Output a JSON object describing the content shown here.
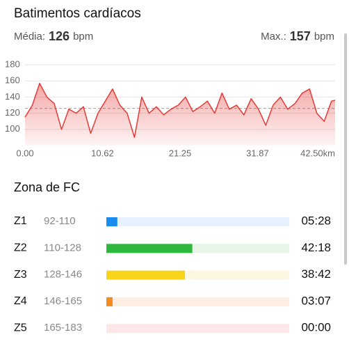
{
  "header": {
    "title": "Batimentos cardíacos",
    "avg_label": "Média:",
    "avg_value": 126,
    "avg_unit": "bpm",
    "max_label": "Max.:",
    "max_value": 157,
    "max_unit": "bpm"
  },
  "chart_data": {
    "type": "area",
    "color": "#e53935",
    "x": [
      0,
      1,
      2,
      3,
      4,
      5,
      6,
      7,
      8,
      9,
      10,
      11,
      12,
      13,
      14,
      15,
      16,
      17,
      18,
      19,
      20,
      21,
      22,
      23,
      24,
      25,
      26,
      27,
      28,
      29,
      30,
      31,
      32,
      33,
      34,
      35,
      36,
      37,
      38,
      39,
      40,
      41,
      42,
      42.5
    ],
    "values": [
      115,
      130,
      157,
      140,
      132,
      100,
      125,
      120,
      128,
      95,
      120,
      135,
      150,
      130,
      120,
      90,
      140,
      120,
      128,
      118,
      125,
      130,
      140,
      122,
      128,
      135,
      120,
      145,
      125,
      130,
      118,
      138,
      125,
      105,
      130,
      140,
      125,
      132,
      145,
      150,
      120,
      110,
      135,
      136
    ],
    "xlim": [
      0,
      42.5
    ],
    "ylim": [
      80,
      180
    ],
    "yticks": [
      100,
      120,
      140,
      160,
      180
    ],
    "xticks": [
      {
        "value": 0,
        "label": "0.00"
      },
      10.62,
      21.25,
      31.87,
      {
        "value": 42.5,
        "label": "42.50km"
      }
    ],
    "grid": true
  },
  "zones": {
    "title": "Zona de FC",
    "rows": [
      {
        "name": "Z1",
        "range": "92-110",
        "time": "05:28",
        "share": 6,
        "color": "#1a8cf0",
        "track": "#e6f1fd"
      },
      {
        "name": "Z2",
        "range": "110-128",
        "time": "42:18",
        "share": 47,
        "color": "#2db83d",
        "track": "#e6f5e8"
      },
      {
        "name": "Z3",
        "range": "128-146",
        "time": "38:42",
        "share": 43,
        "color": "#f9d21a",
        "track": "#fdf7e2"
      },
      {
        "name": "Z4",
        "range": "146-165",
        "time": "03:07",
        "share": 3.4,
        "color": "#f38b1f",
        "track": "#fdeee2"
      },
      {
        "name": "Z5",
        "range": "165-183",
        "time": "00:00",
        "share": 0,
        "color": "#f04c4c",
        "track": "#fde6e6"
      }
    ]
  }
}
